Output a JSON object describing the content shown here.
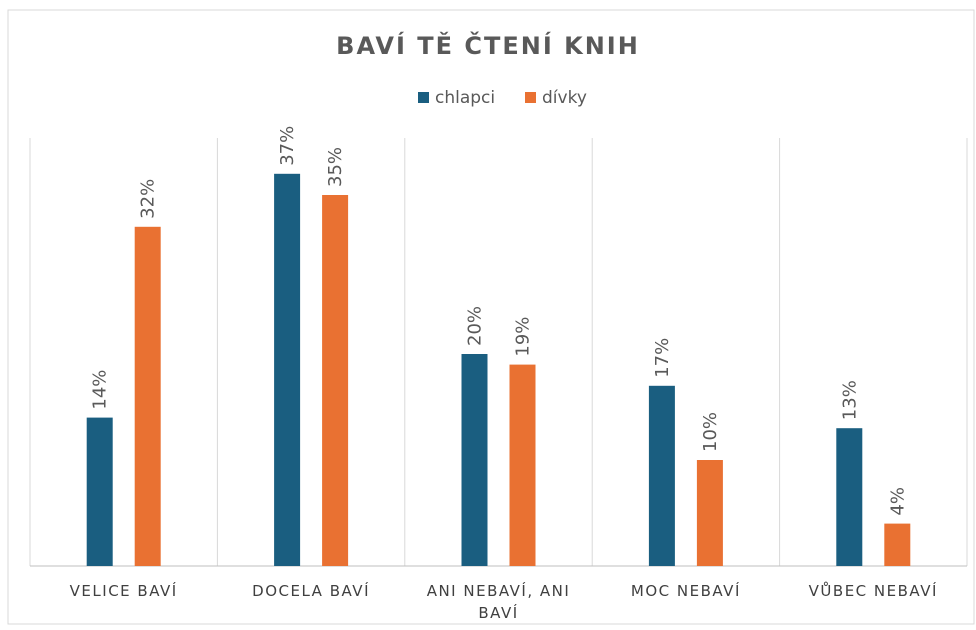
{
  "chart_data": {
    "type": "bar",
    "title": "BAVÍ TĚ ČTENÍ KNIH",
    "categories": [
      "VELICE BAVÍ",
      "DOCELA BAVÍ",
      "ANI NEBAVÍ, ANI BAVÍ",
      "MOC NEBAVÍ",
      "VŮBEC NEBAVÍ"
    ],
    "series": [
      {
        "name": "chlapci",
        "color": "#1a5e80",
        "values": [
          14,
          37,
          20,
          17,
          13
        ],
        "value_labels": [
          "14%",
          "37%",
          "20%",
          "17%",
          "13%"
        ]
      },
      {
        "name": "dívky",
        "color": "#e97132",
        "values": [
          32,
          35,
          19,
          10,
          4
        ],
        "value_labels": [
          "32%",
          "35%",
          "19%",
          "10%",
          "4%"
        ]
      }
    ],
    "ylim": [
      0,
      40
    ],
    "legend": "top"
  }
}
